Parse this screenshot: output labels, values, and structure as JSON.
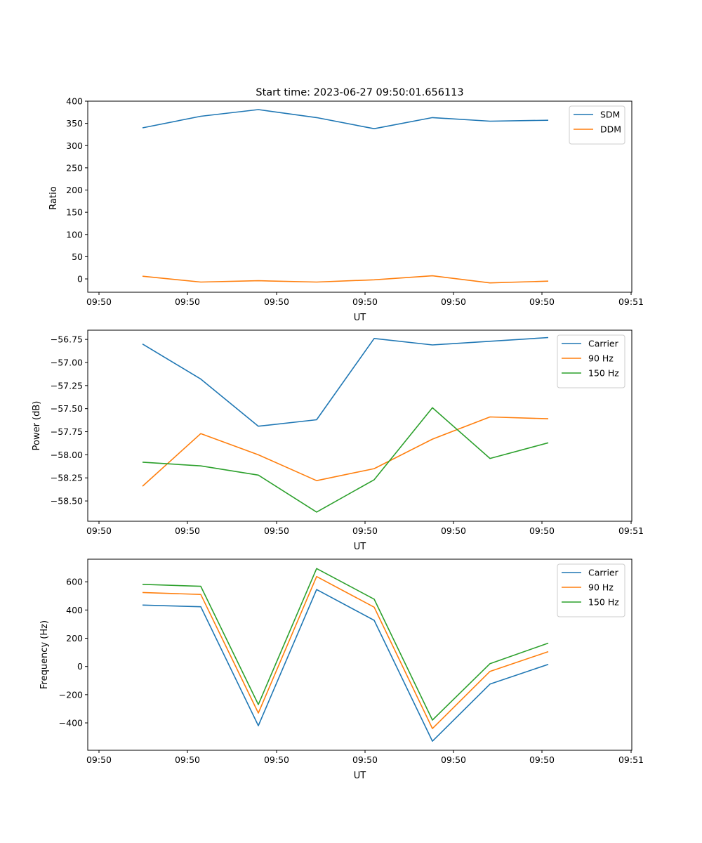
{
  "chart_data": [
    {
      "type": "line",
      "title": "Start time: 2023-06-27 09:50:01.656113",
      "xlabel": "UT",
      "ylabel": "Ratio",
      "x_ticks": [
        "09:50",
        "09:50",
        "09:50",
        "09:50",
        "09:50",
        "09:50",
        "09:51"
      ],
      "ylim": [
        -30,
        400
      ],
      "y_ticks": [
        0,
        50,
        100,
        150,
        200,
        250,
        300,
        350,
        400
      ],
      "y_tick_labels": [
        "0",
        "50",
        "100",
        "150",
        "200",
        "250",
        "300",
        "350",
        "400"
      ],
      "legend_position": "upper right",
      "series": [
        {
          "name": "SDM",
          "color": "#1f77b4",
          "values": [
            340,
            366,
            381,
            363,
            338,
            363,
            355,
            357
          ]
        },
        {
          "name": "DDM",
          "color": "#ff7f0e",
          "values": [
            6,
            -7,
            -4,
            -7,
            -2,
            7,
            -9,
            -5
          ]
        }
      ]
    },
    {
      "type": "line",
      "title": "",
      "xlabel": "UT",
      "ylabel": "Power (dB)",
      "x_ticks": [
        "09:50",
        "09:50",
        "09:50",
        "09:50",
        "09:50",
        "09:50",
        "09:51"
      ],
      "ylim": [
        -58.72,
        -56.65
      ],
      "y_ticks": [
        -58.5,
        -58.25,
        -58.0,
        -57.75,
        -57.5,
        -57.25,
        -57.0,
        -56.75
      ],
      "y_tick_labels": [
        "−58.50",
        "−58.25",
        "−58.00",
        "−57.75",
        "−57.50",
        "−57.25",
        "−57.00",
        "−56.75"
      ],
      "legend_position": "upper right",
      "series": [
        {
          "name": "Carrier",
          "color": "#1f77b4",
          "values": [
            -56.8,
            -57.18,
            -57.69,
            -57.62,
            -56.74,
            -56.81,
            -56.77,
            -56.73
          ]
        },
        {
          "name": "90 Hz",
          "color": "#ff7f0e",
          "values": [
            -58.34,
            -57.77,
            -58.0,
            -58.28,
            -58.15,
            -57.83,
            -57.59,
            -57.61
          ]
        },
        {
          "name": "150 Hz",
          "color": "#2ca02c",
          "values": [
            -58.08,
            -58.12,
            -58.22,
            -58.62,
            -58.27,
            -57.49,
            -58.04,
            -57.87
          ]
        }
      ]
    },
    {
      "type": "line",
      "title": "",
      "xlabel": "UT",
      "ylabel": "Frequency (Hz)",
      "x_ticks": [
        "09:50",
        "09:50",
        "09:50",
        "09:50",
        "09:50",
        "09:50",
        "09:51"
      ],
      "ylim": [
        -594,
        760
      ],
      "y_ticks": [
        -400,
        -200,
        0,
        200,
        400,
        600
      ],
      "y_tick_labels": [
        "−400",
        "−200",
        "0",
        "200",
        "400",
        "600"
      ],
      "legend_position": "upper right",
      "series": [
        {
          "name": "Carrier",
          "color": "#1f77b4",
          "values": [
            435,
            423,
            -420,
            545,
            327,
            -530,
            -125,
            15
          ]
        },
        {
          "name": "90 Hz",
          "color": "#ff7f0e",
          "values": [
            524,
            510,
            -330,
            637,
            420,
            -440,
            -35,
            105
          ]
        },
        {
          "name": "150 Hz",
          "color": "#2ca02c",
          "values": [
            582,
            568,
            -270,
            694,
            477,
            -380,
            20,
            165
          ]
        }
      ]
    }
  ]
}
